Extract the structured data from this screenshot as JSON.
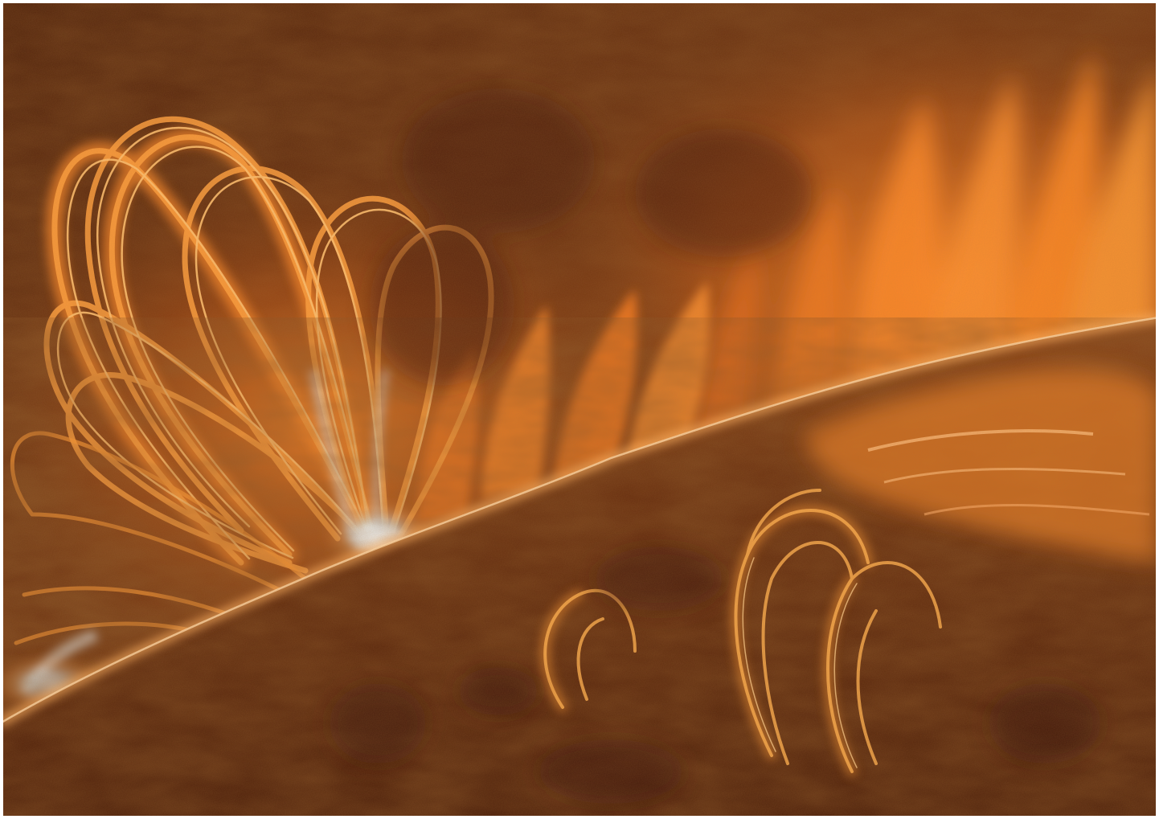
{
  "image": {
    "subject": "solar-flare-coronal-loops",
    "colors": {
      "sky_dark": "#5a2a10",
      "sky_mid": "#7a3a14",
      "loop_bright": "#ff9a3a",
      "loop_glow": "#ff7a1a",
      "hot_core": "#eaf6ff",
      "surface_dark": "#4a200c",
      "surface_mid": "#8a4418",
      "limb_edge": "#ffb060",
      "border": "#ffffff"
    }
  }
}
